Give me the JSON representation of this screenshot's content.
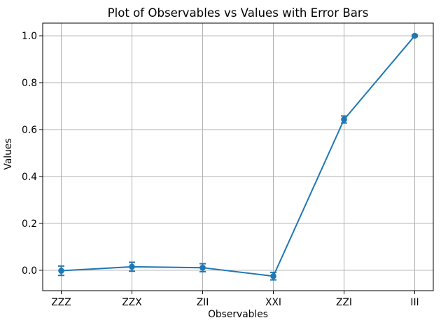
{
  "chart_data": {
    "type": "line",
    "title": "Plot of Observables vs Values with Error Bars",
    "xlabel": "Observables",
    "ylabel": "Values",
    "categories": [
      "ZZZ",
      "ZZX",
      "ZII",
      "XXI",
      "ZZI",
      "III"
    ],
    "series": [
      {
        "name": "values",
        "values": [
          -0.002,
          0.015,
          0.011,
          -0.025,
          0.643,
          1.0
        ],
        "errors": [
          0.02,
          0.019,
          0.017,
          0.016,
          0.015,
          0.004
        ]
      }
    ],
    "ytick_labels": [
      "0.0",
      "0.2",
      "0.4",
      "0.6",
      "0.8",
      "1.0"
    ],
    "ytick_values": [
      0.0,
      0.2,
      0.4,
      0.6,
      0.8,
      1.0
    ],
    "ylim": [
      -0.087,
      1.054
    ],
    "grid": true,
    "legend_position": "none",
    "line_color": "#1f77b4",
    "grid_color": "#b0b0b0",
    "spine_color": "#000000",
    "marker": "circle",
    "error_caps": true
  }
}
